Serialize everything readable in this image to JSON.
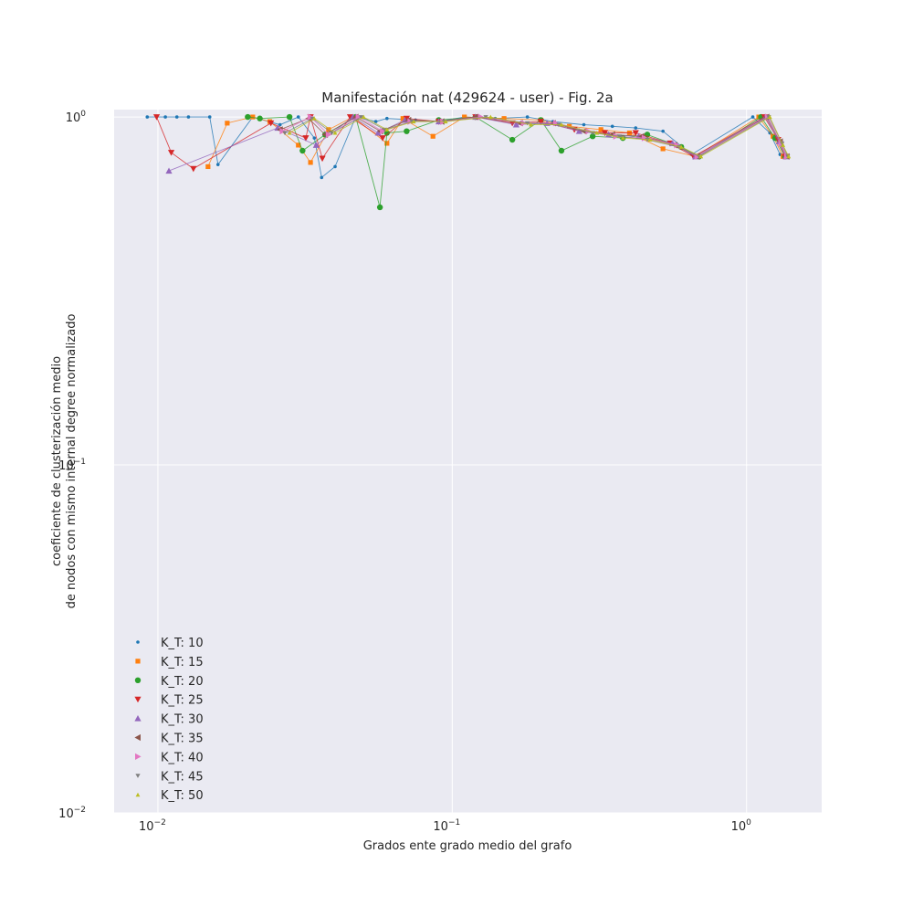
{
  "chart_data": {
    "type": "line",
    "title": "Manifestación nat (429624 - user) - Fig. 2a",
    "xlabel": "Grados ente grado medio del grafo",
    "ylabel_lines": [
      "coeficiente de clusterización medio",
      "de nodos con mismo internal degree normalizado"
    ],
    "xscale": "log",
    "yscale": "log",
    "xlim": [
      0.0071,
      1.8
    ],
    "ylim": [
      0.01,
      1.05
    ],
    "grid": true,
    "legend_position": "lower-left",
    "x_ticks": [
      {
        "value": 0.01,
        "base": "10",
        "exp": "−2"
      },
      {
        "value": 0.1,
        "base": "10",
        "exp": "−1"
      },
      {
        "value": 1,
        "base": "10",
        "exp": "0"
      }
    ],
    "y_ticks": [
      {
        "value": 0.01,
        "base": "10",
        "exp": "−2"
      },
      {
        "value": 0.1,
        "base": "10",
        "exp": "−1"
      },
      {
        "value": 1,
        "base": "10",
        "exp": "0"
      }
    ],
    "series": [
      {
        "name": "K_T: 10",
        "color": "#1f77b4",
        "marker": "point",
        "points": [
          [
            0.0092,
            1.0
          ],
          [
            0.0106,
            1.0
          ],
          [
            0.0116,
            1.0
          ],
          [
            0.0127,
            1.0
          ],
          [
            0.015,
            1.0
          ],
          [
            0.016,
            0.73
          ],
          [
            0.021,
            1.0
          ],
          [
            0.026,
            0.95
          ],
          [
            0.03,
            1.0
          ],
          [
            0.034,
            0.87
          ],
          [
            0.036,
            0.67
          ],
          [
            0.04,
            0.72
          ],
          [
            0.047,
            1.0
          ],
          [
            0.055,
            0.97
          ],
          [
            0.06,
            0.99
          ],
          [
            0.075,
            0.98
          ],
          [
            0.09,
            0.97
          ],
          [
            0.11,
            1.0
          ],
          [
            0.14,
            0.99
          ],
          [
            0.18,
            1.0
          ],
          [
            0.22,
            0.97
          ],
          [
            0.28,
            0.95
          ],
          [
            0.35,
            0.94
          ],
          [
            0.42,
            0.93
          ],
          [
            0.52,
            0.91
          ],
          [
            0.65,
            0.78
          ],
          [
            1.05,
            1.0
          ],
          [
            1.2,
            0.9
          ],
          [
            1.3,
            0.78
          ]
        ]
      },
      {
        "name": "K_T: 15",
        "color": "#ff7f0e",
        "marker": "square",
        "points": [
          [
            0.0148,
            0.72
          ],
          [
            0.0172,
            0.96
          ],
          [
            0.021,
            1.0
          ],
          [
            0.024,
            0.97
          ],
          [
            0.03,
            0.83
          ],
          [
            0.033,
            0.74
          ],
          [
            0.038,
            0.92
          ],
          [
            0.046,
            1.0
          ],
          [
            0.06,
            0.84
          ],
          [
            0.068,
            0.99
          ],
          [
            0.086,
            0.88
          ],
          [
            0.11,
            1.0
          ],
          [
            0.15,
            0.99
          ],
          [
            0.2,
            0.98
          ],
          [
            0.25,
            0.94
          ],
          [
            0.32,
            0.92
          ],
          [
            0.4,
            0.9
          ],
          [
            0.52,
            0.81
          ],
          [
            0.67,
            0.77
          ],
          [
            1.1,
            1.0
          ],
          [
            1.23,
            0.88
          ],
          [
            1.33,
            0.77
          ]
        ]
      },
      {
        "name": "K_T: 20",
        "color": "#2ca02c",
        "marker": "circle",
        "points": [
          [
            0.0202,
            1.0
          ],
          [
            0.0222,
            0.99
          ],
          [
            0.028,
            1.0
          ],
          [
            0.031,
            0.8
          ],
          [
            0.037,
            0.89
          ],
          [
            0.047,
            1.0
          ],
          [
            0.0568,
            0.55
          ],
          [
            0.06,
            0.9
          ],
          [
            0.07,
            0.91
          ],
          [
            0.09,
            0.98
          ],
          [
            0.12,
            1.0
          ],
          [
            0.16,
            0.86
          ],
          [
            0.2,
            0.98
          ],
          [
            0.235,
            0.8
          ],
          [
            0.3,
            0.88
          ],
          [
            0.38,
            0.87
          ],
          [
            0.46,
            0.89
          ],
          [
            0.6,
            0.82
          ],
          [
            0.69,
            0.77
          ],
          [
            1.12,
            1.0
          ],
          [
            1.25,
            0.87
          ],
          [
            1.35,
            0.77
          ]
        ]
      },
      {
        "name": "K_T: 25",
        "color": "#d62728",
        "marker": "triangle_down",
        "points": [
          [
            0.0099,
            1.0
          ],
          [
            0.0111,
            0.79
          ],
          [
            0.0132,
            0.71
          ],
          [
            0.0242,
            0.96
          ],
          [
            0.0318,
            0.87
          ],
          [
            0.033,
            1.0
          ],
          [
            0.0362,
            0.76
          ],
          [
            0.045,
            1.0
          ],
          [
            0.058,
            0.87
          ],
          [
            0.07,
            0.99
          ],
          [
            0.09,
            0.97
          ],
          [
            0.12,
            1.0
          ],
          [
            0.16,
            0.96
          ],
          [
            0.2,
            0.97
          ],
          [
            0.26,
            0.92
          ],
          [
            0.33,
            0.9
          ],
          [
            0.42,
            0.9
          ],
          [
            0.55,
            0.84
          ],
          [
            0.66,
            0.77
          ],
          [
            1.15,
            1.0
          ],
          [
            1.28,
            0.86
          ],
          [
            1.35,
            0.77
          ]
        ]
      },
      {
        "name": "K_T: 30",
        "color": "#9467bd",
        "marker": "triangle_up",
        "points": [
          [
            0.0109,
            0.7
          ],
          [
            0.0255,
            0.93
          ],
          [
            0.0345,
            0.83
          ],
          [
            0.046,
            1.0
          ],
          [
            0.056,
            0.9
          ],
          [
            0.069,
            0.98
          ],
          [
            0.09,
            0.97
          ],
          [
            0.12,
            1.0
          ],
          [
            0.165,
            0.95
          ],
          [
            0.21,
            0.96
          ],
          [
            0.27,
            0.91
          ],
          [
            0.34,
            0.89
          ],
          [
            0.43,
            0.88
          ],
          [
            0.56,
            0.84
          ],
          [
            0.67,
            0.77
          ],
          [
            1.16,
            1.0
          ],
          [
            1.29,
            0.85
          ],
          [
            1.36,
            0.77
          ]
        ]
      },
      {
        "name": "K_T: 35",
        "color": "#8c564b",
        "marker": "triangle_left",
        "points": [
          [
            0.026,
            0.92
          ],
          [
            0.0325,
            0.99
          ],
          [
            0.037,
            0.89
          ],
          [
            0.047,
            1.0
          ],
          [
            0.057,
            0.91
          ],
          [
            0.071,
            0.98
          ],
          [
            0.092,
            0.97
          ],
          [
            0.12,
            1.0
          ],
          [
            0.17,
            0.96
          ],
          [
            0.22,
            0.96
          ],
          [
            0.28,
            0.91
          ],
          [
            0.35,
            0.89
          ],
          [
            0.44,
            0.88
          ],
          [
            0.57,
            0.83
          ],
          [
            0.68,
            0.77
          ],
          [
            1.17,
            1.0
          ],
          [
            1.3,
            0.85
          ],
          [
            1.37,
            0.77
          ]
        ]
      },
      {
        "name": "K_T: 40",
        "color": "#e377c2",
        "marker": "triangle_right",
        "points": [
          [
            0.0265,
            0.91
          ],
          [
            0.033,
            1.0
          ],
          [
            0.038,
            0.89
          ],
          [
            0.048,
            1.0
          ],
          [
            0.058,
            0.91
          ],
          [
            0.072,
            0.97
          ],
          [
            0.093,
            0.97
          ],
          [
            0.125,
            1.0
          ],
          [
            0.175,
            0.96
          ],
          [
            0.225,
            0.96
          ],
          [
            0.29,
            0.91
          ],
          [
            0.36,
            0.88
          ],
          [
            0.45,
            0.87
          ],
          [
            0.58,
            0.83
          ],
          [
            0.68,
            0.77
          ],
          [
            1.18,
            1.0
          ],
          [
            1.31,
            0.84
          ],
          [
            1.37,
            0.77
          ]
        ]
      },
      {
        "name": "K_T: 45",
        "color": "#7f7f7f",
        "marker": "tri_down",
        "points": [
          [
            0.027,
            0.9
          ],
          [
            0.0335,
            0.99
          ],
          [
            0.039,
            0.9
          ],
          [
            0.049,
            1.0
          ],
          [
            0.059,
            0.92
          ],
          [
            0.073,
            0.97
          ],
          [
            0.094,
            0.97
          ],
          [
            0.13,
            1.0
          ],
          [
            0.18,
            0.96
          ],
          [
            0.23,
            0.95
          ],
          [
            0.3,
            0.9
          ],
          [
            0.37,
            0.88
          ],
          [
            0.46,
            0.86
          ],
          [
            0.59,
            0.82
          ],
          [
            0.69,
            0.77
          ],
          [
            1.19,
            1.0
          ],
          [
            1.32,
            0.84
          ],
          [
            1.38,
            0.77
          ]
        ]
      },
      {
        "name": "K_T: 50",
        "color": "#bcbd22",
        "marker": "small_triangle",
        "points": [
          [
            0.028,
            0.9
          ],
          [
            0.034,
            0.99
          ],
          [
            0.04,
            0.9
          ],
          [
            0.05,
            1.0
          ],
          [
            0.06,
            0.92
          ],
          [
            0.074,
            0.97
          ],
          [
            0.095,
            0.97
          ],
          [
            0.135,
            1.0
          ],
          [
            0.185,
            0.95
          ],
          [
            0.235,
            0.95
          ],
          [
            0.31,
            0.9
          ],
          [
            0.38,
            0.87
          ],
          [
            0.47,
            0.86
          ],
          [
            0.6,
            0.82
          ],
          [
            0.7,
            0.77
          ],
          [
            1.2,
            1.0
          ],
          [
            1.33,
            0.83
          ],
          [
            1.39,
            0.77
          ]
        ]
      }
    ]
  }
}
